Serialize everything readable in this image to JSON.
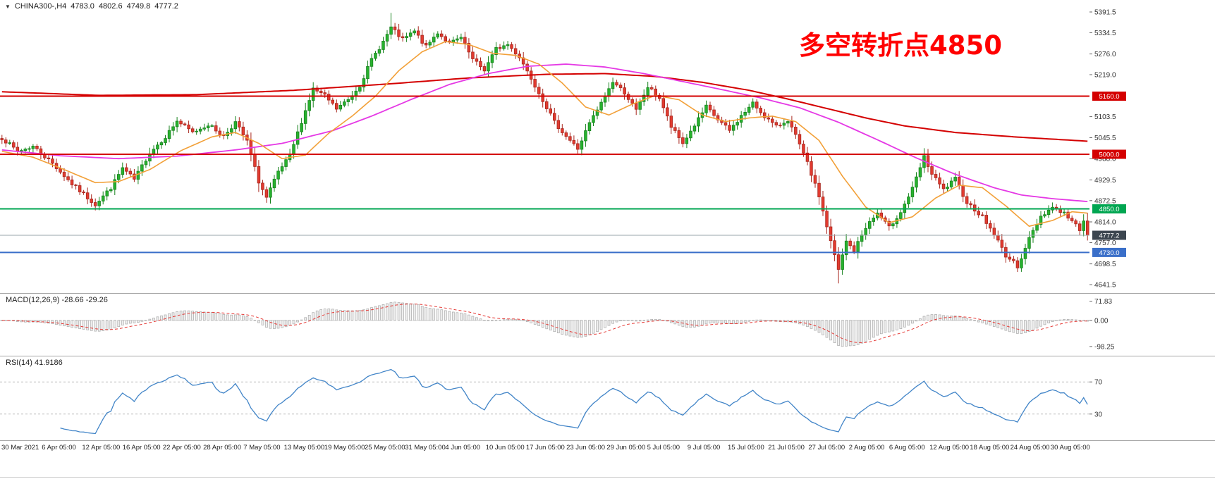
{
  "header": {
    "dropdown_icon": "▼",
    "symbol": "CHINA300-,H4",
    "open": "4783.0",
    "high": "4802.6",
    "low": "4749.8",
    "close": "4777.2"
  },
  "annotation": {
    "text": "多空转折点4850",
    "color": "#ff0000"
  },
  "chart_data": {
    "type": "candlestick",
    "title": "CHINA300-,H4",
    "timeframe": "H4",
    "legend_position": "none",
    "grid": false,
    "current_bar": {
      "open": 4783.0,
      "high": 4802.6,
      "low": 4749.8,
      "close": 4777.2
    },
    "price": {
      "y_min": 4630,
      "y_max": 5405,
      "num_candles": 280,
      "noise": 11,
      "seed": 7,
      "wick_high": 5389,
      "wick_low": 4645,
      "up_color": "#27b22e",
      "up_stroke": "#17821d",
      "down_color": "#e23b30",
      "down_stroke": "#a8261d",
      "close_waypoints": [
        [
          0,
          5045
        ],
        [
          4,
          5008
        ],
        [
          8,
          5022
        ],
        [
          13,
          4975
        ],
        [
          18,
          4918
        ],
        [
          24,
          4862
        ],
        [
          28,
          4908
        ],
        [
          31,
          4962
        ],
        [
          34,
          4930
        ],
        [
          38,
          5005
        ],
        [
          42,
          5048
        ],
        [
          45,
          5092
        ],
        [
          49,
          5060
        ],
        [
          53,
          5082
        ],
        [
          57,
          5050
        ],
        [
          60,
          5088
        ],
        [
          63,
          5035
        ],
        [
          66,
          4925
        ],
        [
          68,
          4880
        ],
        [
          71,
          4950
        ],
        [
          74,
          4995
        ],
        [
          77,
          5090
        ],
        [
          80,
          5180
        ],
        [
          83,
          5160
        ],
        [
          86,
          5125
        ],
        [
          89,
          5150
        ],
        [
          92,
          5190
        ],
        [
          95,
          5260
        ],
        [
          98,
          5310
        ],
        [
          100,
          5348
        ],
        [
          103,
          5315
        ],
        [
          106,
          5338
        ],
        [
          109,
          5295
        ],
        [
          112,
          5335
        ],
        [
          115,
          5305
        ],
        [
          118,
          5320
        ],
        [
          121,
          5260
        ],
        [
          124,
          5232
        ],
        [
          127,
          5290
        ],
        [
          130,
          5302
        ],
        [
          133,
          5268
        ],
        [
          136,
          5210
        ],
        [
          139,
          5150
        ],
        [
          142,
          5088
        ],
        [
          145,
          5050
        ],
        [
          148,
          5015
        ],
        [
          151,
          5085
        ],
        [
          154,
          5140
        ],
        [
          157,
          5200
        ],
        [
          160,
          5170
        ],
        [
          163,
          5120
        ],
        [
          166,
          5185
        ],
        [
          169,
          5155
        ],
        [
          172,
          5075
        ],
        [
          175,
          5030
        ],
        [
          178,
          5080
        ],
        [
          181,
          5130
        ],
        [
          184,
          5095
        ],
        [
          187,
          5065
        ],
        [
          190,
          5105
        ],
        [
          193,
          5140
        ],
        [
          196,
          5105
        ],
        [
          199,
          5075
        ],
        [
          202,
          5095
        ],
        [
          204,
          5050
        ],
        [
          207,
          4975
        ],
        [
          210,
          4885
        ],
        [
          213,
          4760
        ],
        [
          215,
          4682
        ],
        [
          217,
          4760
        ],
        [
          219,
          4735
        ],
        [
          222,
          4800
        ],
        [
          225,
          4838
        ],
        [
          228,
          4798
        ],
        [
          231,
          4842
        ],
        [
          234,
          4905
        ],
        [
          237,
          4992
        ],
        [
          239,
          4945
        ],
        [
          242,
          4902
        ],
        [
          245,
          4932
        ],
        [
          248,
          4868
        ],
        [
          252,
          4828
        ],
        [
          255,
          4780
        ],
        [
          258,
          4722
        ],
        [
          261,
          4692
        ],
        [
          264,
          4768
        ],
        [
          267,
          4830
        ],
        [
          270,
          4855
        ],
        [
          273,
          4838
        ],
        [
          275,
          4815
        ],
        [
          277,
          4795
        ],
        [
          278,
          4820
        ],
        [
          279,
          4777.2
        ]
      ],
      "moving_averages": [
        {
          "name": "ma-slow-red",
          "color": "#d40000",
          "width": 2,
          "points": [
            [
              0,
              5172
            ],
            [
              25,
              5162
            ],
            [
              50,
              5164
            ],
            [
              75,
              5176
            ],
            [
              100,
              5194
            ],
            [
              120,
              5210
            ],
            [
              140,
              5220
            ],
            [
              155,
              5222
            ],
            [
              168,
              5214
            ],
            [
              180,
              5198
            ],
            [
              192,
              5176
            ],
            [
              202,
              5152
            ],
            [
              212,
              5126
            ],
            [
              222,
              5100
            ],
            [
              232,
              5078
            ],
            [
              245,
              5060
            ],
            [
              260,
              5048
            ],
            [
              279,
              5036
            ]
          ]
        },
        {
          "name": "ma-mid-magenta",
          "color": "#e539e5",
          "width": 1.8,
          "points": [
            [
              0,
              5012
            ],
            [
              15,
              4996
            ],
            [
              30,
              4988
            ],
            [
              45,
              4995
            ],
            [
              60,
              5012
            ],
            [
              72,
              5030
            ],
            [
              85,
              5065
            ],
            [
              95,
              5105
            ],
            [
              105,
              5150
            ],
            [
              115,
              5192
            ],
            [
              125,
              5222
            ],
            [
              135,
              5242
            ],
            [
              145,
              5248
            ],
            [
              155,
              5240
            ],
            [
              165,
              5222
            ],
            [
              175,
              5200
            ],
            [
              185,
              5178
            ],
            [
              195,
              5155
            ],
            [
              205,
              5128
            ],
            [
              215,
              5088
            ],
            [
              225,
              5040
            ],
            [
              235,
              4990
            ],
            [
              245,
              4945
            ],
            [
              255,
              4908
            ],
            [
              262,
              4888
            ],
            [
              270,
              4878
            ],
            [
              279,
              4870
            ]
          ]
        },
        {
          "name": "ma-fast-orange",
          "color": "#f2a038",
          "width": 1.6,
          "points": [
            [
              0,
              5008
            ],
            [
              8,
              4992
            ],
            [
              16,
              4958
            ],
            [
              24,
              4922
            ],
            [
              30,
              4925
            ],
            [
              38,
              4958
            ],
            [
              46,
              5010
            ],
            [
              54,
              5048
            ],
            [
              60,
              5060
            ],
            [
              66,
              5030
            ],
            [
              72,
              4988
            ],
            [
              78,
              4998
            ],
            [
              84,
              5058
            ],
            [
              90,
              5105
            ],
            [
              96,
              5160
            ],
            [
              102,
              5230
            ],
            [
              108,
              5282
            ],
            [
              114,
              5310
            ],
            [
              120,
              5302
            ],
            [
              126,
              5278
            ],
            [
              132,
              5272
            ],
            [
              138,
              5248
            ],
            [
              144,
              5196
            ],
            [
              150,
              5130
            ],
            [
              156,
              5108
            ],
            [
              162,
              5138
            ],
            [
              168,
              5162
            ],
            [
              174,
              5150
            ],
            [
              180,
              5108
            ],
            [
              186,
              5090
            ],
            [
              192,
              5100
            ],
            [
              198,
              5105
            ],
            [
              204,
              5090
            ],
            [
              210,
              5038
            ],
            [
              216,
              4940
            ],
            [
              222,
              4855
            ],
            [
              228,
              4812
            ],
            [
              234,
              4828
            ],
            [
              240,
              4880
            ],
            [
              246,
              4915
            ],
            [
              252,
              4908
            ],
            [
              258,
              4858
            ],
            [
              264,
              4802
            ],
            [
              270,
              4818
            ],
            [
              275,
              4842
            ],
            [
              279,
              4838
            ]
          ]
        }
      ],
      "horizontal_lines": [
        {
          "label": "5160.0",
          "value": 5160.0,
          "color": "#d40000",
          "width": 2
        },
        {
          "label": "5000.0",
          "value": 5000.0,
          "color": "#d40000",
          "width": 2
        },
        {
          "label": "4850.0",
          "value": 4850.0,
          "color": "#00a651",
          "width": 2
        },
        {
          "label": "4730.0",
          "value": 4730.0,
          "color": "#3a6fc9",
          "width": 2
        }
      ],
      "current_price": {
        "label": "4777.2",
        "value": 4777.2,
        "line_color": "#9aa4ab",
        "box_color": "#3c4650"
      },
      "axis_ticks": [
        "5391.5",
        "5334.5",
        "5276.0",
        "5219.0",
        "5103.5",
        "5045.5",
        "4988.0",
        "4929.5",
        "4872.5",
        "4814.0",
        "4757.0",
        "4698.5",
        "4641.5"
      ]
    },
    "macd": {
      "label": "MACD(12,26,9) -28.66 -29.26",
      "params": [
        12,
        26,
        9
      ],
      "value_main": -28.66,
      "value_signal": -29.26,
      "axis_ticks": [
        "71.83",
        "0.00",
        "-98.25"
      ],
      "range": [
        -125,
        92
      ],
      "hist_fill": "#efefef",
      "hist_stroke": "#a9a9a9",
      "signal_color": "#e53935"
    },
    "rsi": {
      "label": "RSI(14) 41.9186",
      "period": 14,
      "value": 41.9186,
      "levels": [
        70,
        30
      ],
      "line_color": "#4285c8"
    },
    "x_axis": {
      "labels": [
        "30 Mar 2021",
        "6 Apr 05:00",
        "12 Apr 05:00",
        "16 Apr 05:00",
        "22 Apr 05:00",
        "28 Apr 05:00",
        "7 May 05:00",
        "13 May 05:00",
        "19 May 05:00",
        "25 May 05:00",
        "31 May 05:00",
        "4 Jun 05:00",
        "10 Jun 05:00",
        "17 Jun 05:00",
        "23 Jun 05:00",
        "29 Jun 05:00",
        "5 Jul 05:00",
        "9 Jul 05:00",
        "15 Jul 05:00",
        "21 Jul 05:00",
        "27 Jul 05:00",
        "2 Aug 05:00",
        "6 Aug 05:00",
        "12 Aug 05:00",
        "18 Aug 05:00",
        "24 Aug 05:00",
        "30 Aug 05:00"
      ]
    }
  }
}
